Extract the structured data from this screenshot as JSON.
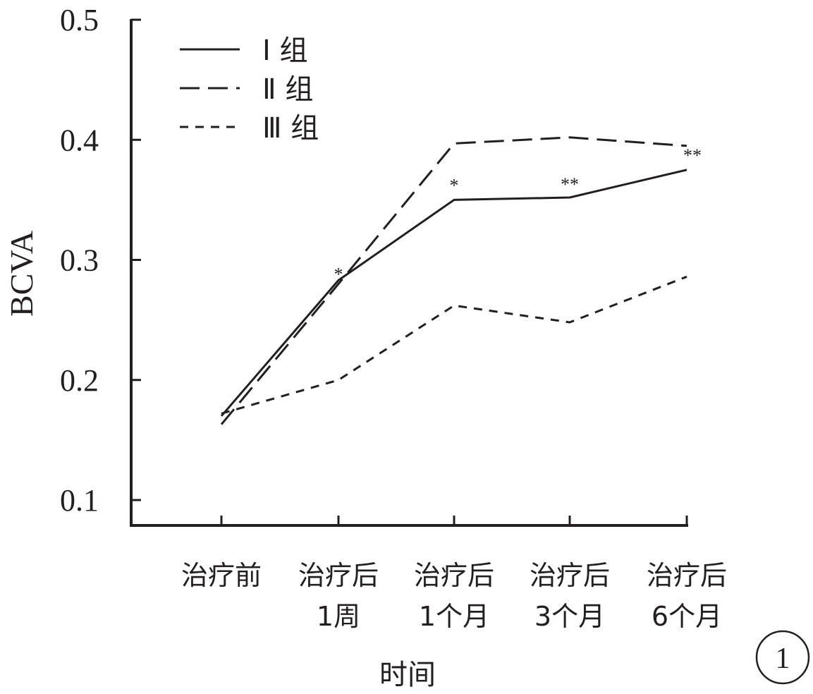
{
  "chart_data": {
    "type": "line",
    "categories": [
      [
        "治疗前"
      ],
      [
        "治疗后",
        "1周"
      ],
      [
        "治疗后",
        "1个月"
      ],
      [
        "治疗后",
        "3个月"
      ],
      [
        "治疗后",
        "6个月"
      ]
    ],
    "series": [
      {
        "name": "Ⅰ 组",
        "style": "solid",
        "values": [
          0.17,
          0.283,
          0.35,
          0.352,
          0.375
        ]
      },
      {
        "name": "Ⅱ 组",
        "style": "dashed",
        "values": [
          0.163,
          0.28,
          0.397,
          0.402,
          0.395
        ]
      },
      {
        "name": "Ⅲ 组",
        "style": "dotted",
        "values": [
          0.172,
          0.2,
          0.262,
          0.248,
          0.286
        ]
      }
    ],
    "annotations": [
      {
        "category_index": 1,
        "value": 0.29,
        "text": "*"
      },
      {
        "category_index": 2,
        "value": 0.364,
        "text": "*"
      },
      {
        "category_index": 3,
        "value": 0.365,
        "text": "**"
      },
      {
        "category_index": 4,
        "value": 0.389,
        "text": "**"
      }
    ],
    "xlabel": "时间",
    "ylabel": "BCVA",
    "yticks": [
      0.1,
      0.2,
      0.3,
      0.4,
      0.5
    ],
    "ylim": [
      0.08,
      0.5
    ],
    "grid": false,
    "legend": "top-left",
    "panel_label": "1",
    "line_color": "#231f20"
  }
}
